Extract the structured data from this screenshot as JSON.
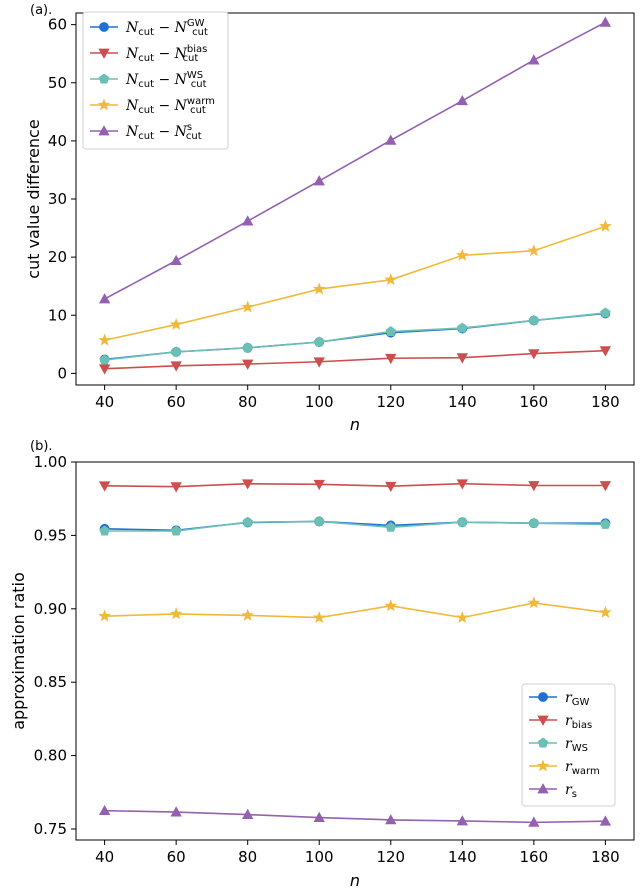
{
  "chart_data": [
    {
      "type": "line",
      "panel_label": "(a).",
      "xlabel": "n",
      "ylabel": "cut value difference",
      "x": [
        40,
        60,
        80,
        100,
        120,
        140,
        160,
        180
      ],
      "xticks": [
        "40",
        "60",
        "80",
        "100",
        "120",
        "140",
        "160",
        "180"
      ],
      "xlim": [
        32,
        188
      ],
      "ylim": [
        -2,
        62
      ],
      "yticks": [
        "0",
        "10",
        "20",
        "30",
        "40",
        "50",
        "60"
      ],
      "ytick_values": [
        0,
        10,
        20,
        30,
        40,
        50,
        60
      ],
      "legend_position": "top-left",
      "series": [
        {
          "key": "gw",
          "name": "N_cut − N_cut^GW",
          "base": "N",
          "sub": "cut",
          "sup": "GW",
          "color": "#1f6fd6",
          "marker": "circle",
          "values": [
            2.4,
            3.7,
            4.4,
            5.4,
            7.0,
            7.7,
            9.1,
            10.3
          ]
        },
        {
          "key": "bias",
          "name": "N_cut − N_cut^bias",
          "base": "N",
          "sub": "cut",
          "sup": "bias",
          "color": "#cc4e4e",
          "marker": "triangle-down",
          "values": [
            0.8,
            1.3,
            1.6,
            2.0,
            2.6,
            2.7,
            3.4,
            3.9
          ]
        },
        {
          "key": "ws",
          "name": "N_cut − N_cut^WS",
          "base": "N",
          "sub": "cut",
          "sup": "WS",
          "color": "#6bbfb3",
          "marker": "pentagon",
          "values": [
            2.3,
            3.7,
            4.4,
            5.4,
            7.2,
            7.8,
            9.1,
            10.4
          ]
        },
        {
          "key": "warm",
          "name": "N_cut − N_cut^warm",
          "base": "N",
          "sub": "cut",
          "sup": "warm",
          "color": "#f0b93a",
          "marker": "star",
          "values": [
            5.7,
            8.4,
            11.4,
            14.5,
            16.1,
            20.3,
            21.1,
            25.3
          ]
        },
        {
          "key": "s",
          "name": "N_cut − N_cut^s",
          "base": "N",
          "sub": "cut",
          "sup": "s",
          "color": "#9461b0",
          "marker": "triangle-up",
          "values": [
            12.8,
            19.4,
            26.2,
            33.1,
            40.1,
            46.9,
            53.9,
            60.4
          ]
        }
      ]
    },
    {
      "type": "line",
      "panel_label": "(b).",
      "xlabel": "n",
      "ylabel": "approximation ratio",
      "x": [
        40,
        60,
        80,
        100,
        120,
        140,
        160,
        180
      ],
      "xticks": [
        "40",
        "60",
        "80",
        "100",
        "120",
        "140",
        "160",
        "180"
      ],
      "xlim": [
        32,
        188
      ],
      "ylim": [
        0.7425,
        1.0
      ],
      "yticks": [
        "0.75",
        "0.80",
        "0.85",
        "0.90",
        "0.95",
        "1.00"
      ],
      "ytick_values": [
        0.75,
        0.8,
        0.85,
        0.9,
        0.95,
        1.0
      ],
      "legend_position": "bottom-right",
      "series": [
        {
          "key": "gw",
          "name": "r_GW",
          "base": "r",
          "sub": "GW",
          "sup": "",
          "color": "#1f6fd6",
          "marker": "circle",
          "values": [
            0.9545,
            0.9535,
            0.9588,
            0.9595,
            0.9568,
            0.959,
            0.9583,
            0.9583
          ]
        },
        {
          "key": "bias",
          "name": "r_bias",
          "base": "r",
          "sub": "bias",
          "sup": "",
          "color": "#cc4e4e",
          "marker": "triangle-down",
          "values": [
            0.9838,
            0.9832,
            0.9852,
            0.9848,
            0.9835,
            0.9852,
            0.984,
            0.984
          ]
        },
        {
          "key": "ws",
          "name": "r_WS",
          "base": "r",
          "sub": "WS",
          "sup": "",
          "color": "#6bbfb3",
          "marker": "pentagon",
          "values": [
            0.953,
            0.953,
            0.959,
            0.9595,
            0.9555,
            0.959,
            0.9583,
            0.9575
          ]
        },
        {
          "key": "warm",
          "name": "r_warm",
          "base": "r",
          "sub": "warm",
          "sup": "",
          "color": "#f0b93a",
          "marker": "star",
          "values": [
            0.895,
            0.8965,
            0.8955,
            0.894,
            0.902,
            0.894,
            0.904,
            0.8975
          ]
        },
        {
          "key": "s",
          "name": "r_s",
          "base": "r",
          "sub": "s",
          "sup": "",
          "color": "#9461b0",
          "marker": "triangle-up",
          "values": [
            0.7625,
            0.7615,
            0.7598,
            0.7578,
            0.7562,
            0.7555,
            0.7545,
            0.7553
          ]
        }
      ]
    }
  ]
}
